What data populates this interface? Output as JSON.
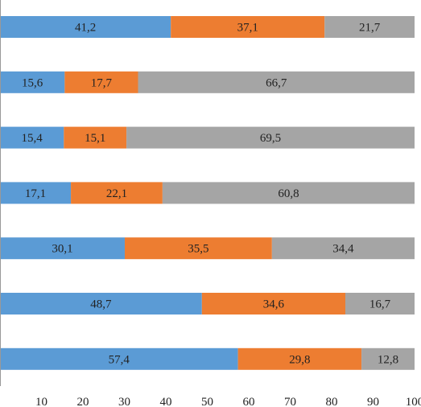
{
  "chart_data": {
    "type": "bar",
    "orientation": "horizontal",
    "stacked": true,
    "decimal_separator": ",",
    "xlim": [
      0,
      100
    ],
    "x_ticks": [
      10,
      20,
      30,
      40,
      50,
      60,
      70,
      80,
      90,
      100
    ],
    "grid": false,
    "rows": 7,
    "series": [
      {
        "color": "#5b9bd5",
        "values": [
          41.2,
          15.6,
          15.4,
          17.1,
          30.1,
          48.7,
          57.4
        ]
      },
      {
        "color": "#ed7d31",
        "values": [
          37.1,
          17.7,
          15.1,
          22.1,
          35.5,
          34.6,
          29.8
        ]
      },
      {
        "color": "#a5a5a5",
        "values": [
          21.7,
          66.7,
          69.5,
          60.8,
          34.4,
          16.7,
          12.8
        ]
      }
    ]
  }
}
